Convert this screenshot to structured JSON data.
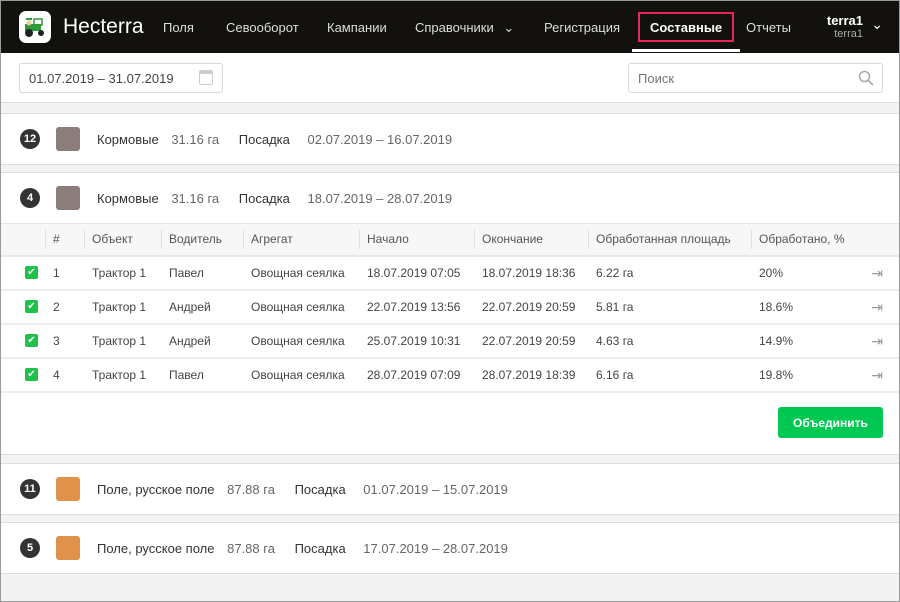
{
  "nav": {
    "brand": "Hecterra",
    "items": [
      "Поля",
      "Севооборот",
      "Кампании",
      "Справочники",
      "Регистрация",
      "Составные",
      "Отчеты"
    ],
    "active": "Составные",
    "user_name": "terra1",
    "user_sub": "terra1"
  },
  "filter": {
    "date_range": "01.07.2019 – 31.07.2019",
    "search_placeholder": "Поиск"
  },
  "groups": [
    {
      "count": "12",
      "color": "#8a7d7a",
      "crop": "Кормовые",
      "area": "31.16 га",
      "operation": "Посадка",
      "period": "02.07.2019 – 16.07.2019"
    },
    {
      "count": "4",
      "color": "#8a7d7a",
      "crop": "Кормовые",
      "area": "31.16 га",
      "operation": "Посадка",
      "period": "18.07.2019 – 28.07.2019"
    },
    {
      "count": "11",
      "color": "#e0914a",
      "crop": "Поле, русское поле",
      "area": "87.88 га",
      "operation": "Посадка",
      "period": "01.07.2019 – 15.07.2019"
    },
    {
      "count": "5",
      "color": "#e0914a",
      "crop": "Поле, русское поле",
      "area": "87.88 га",
      "operation": "Посадка",
      "period": "17.07.2019 – 28.07.2019"
    }
  ],
  "table": {
    "columns": [
      "#",
      "Объект",
      "Водитель",
      "Агрегат",
      "Начало",
      "Окончание",
      "Обработанная площадь",
      "Обработано, %"
    ],
    "rows": [
      [
        "1",
        "Трактор 1",
        "Павел",
        "Овощная сеялка",
        "18.07.2019 07:05",
        "18.07.2019 18:36",
        "6.22 га",
        "20%"
      ],
      [
        "2",
        "Трактор 1",
        "Андрей",
        "Овощная сеялка",
        "22.07.2019 13:56",
        "22.07.2019 20:59",
        "5.81 га",
        "18.6%"
      ],
      [
        "3",
        "Трактор 1",
        "Андрей",
        "Овощная сеялка",
        "25.07.2019 10:31",
        "22.07.2019 20:59",
        "4.63 га",
        "14.9%"
      ],
      [
        "4",
        "Трактор 1",
        "Павел",
        "Овощная сеялка",
        "28.07.2019 07:09",
        "28.07.2019 18:39",
        "6.16 га",
        "19.8%"
      ]
    ],
    "merge_label": "Объединить"
  }
}
